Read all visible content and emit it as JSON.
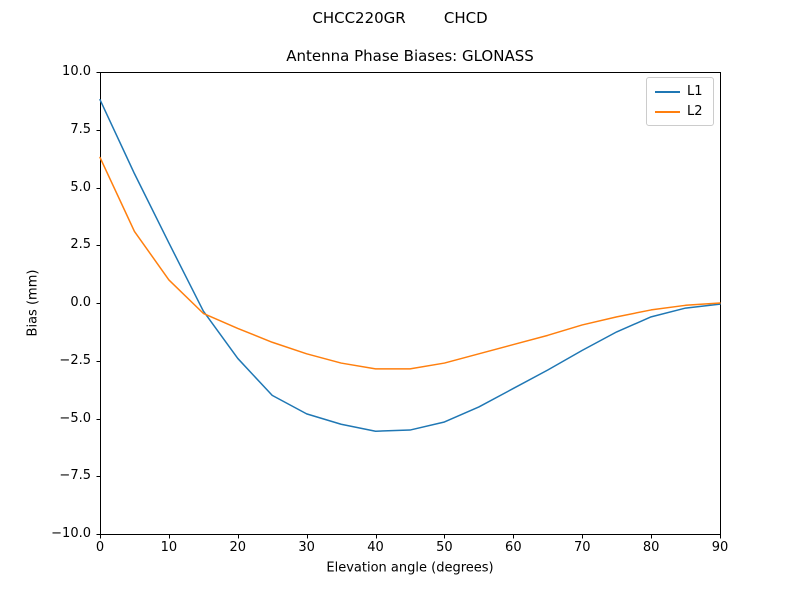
{
  "figure": {
    "suptitle": "CHCC220GR        CHCD",
    "title": "Antenna Phase Biases: GLONASS"
  },
  "chart_data": {
    "type": "line",
    "suptitle": "CHCC220GR        CHCD",
    "title": "Antenna Phase Biases: GLONASS",
    "xlabel": "Elevation angle (degrees)",
    "ylabel": "Bias (mm)",
    "xlim": [
      0,
      90
    ],
    "ylim": [
      -10,
      10
    ],
    "grid": false,
    "legend_position": "upper right",
    "axis_color": "#000000",
    "xticks": [
      0,
      10,
      20,
      30,
      40,
      50,
      60,
      70,
      80,
      90
    ],
    "xtick_labels": [
      "0",
      "10",
      "20",
      "30",
      "40",
      "50",
      "60",
      "70",
      "80",
      "90"
    ],
    "yticks": [
      10,
      7.5,
      5,
      2.5,
      0,
      -2.5,
      -5,
      -7.5,
      -10
    ],
    "ytick_labels": [
      "10.0",
      "7.5",
      "5.0",
      "2.5",
      "0.0",
      "−2.5",
      "−5.0",
      "−7.5",
      "−10.0"
    ],
    "x": [
      0,
      5,
      10,
      15,
      20,
      25,
      30,
      35,
      40,
      45,
      50,
      55,
      60,
      65,
      70,
      75,
      80,
      85,
      90
    ],
    "series": [
      {
        "name": "L1",
        "color": "#1f77b4",
        "values": [
          8.8,
          5.6,
          2.6,
          -0.35,
          -2.4,
          -4.0,
          -4.8,
          -5.25,
          -5.55,
          -5.5,
          -5.15,
          -4.5,
          -3.7,
          -2.9,
          -2.05,
          -1.25,
          -0.6,
          -0.22,
          -0.05
        ]
      },
      {
        "name": "L2",
        "color": "#ff7f0e",
        "values": [
          6.3,
          3.1,
          1.0,
          -0.45,
          -1.1,
          -1.7,
          -2.2,
          -2.6,
          -2.85,
          -2.85,
          -2.6,
          -2.2,
          -1.8,
          -1.4,
          -0.95,
          -0.6,
          -0.3,
          -0.1,
          0.0
        ]
      }
    ]
  }
}
